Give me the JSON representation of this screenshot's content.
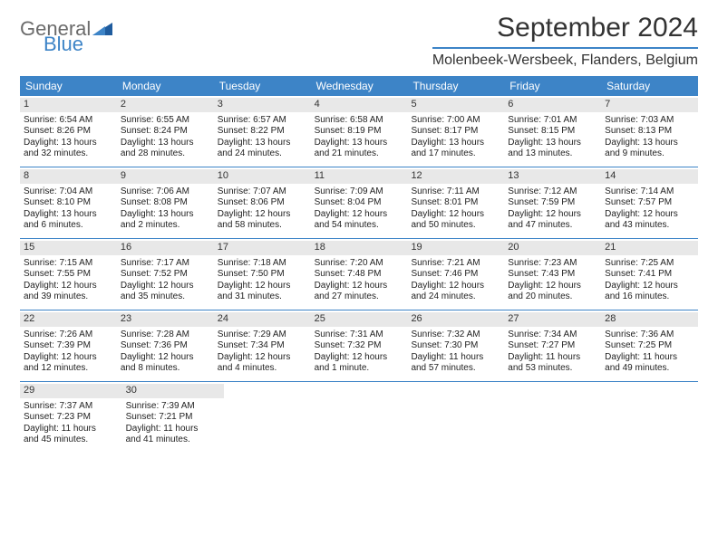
{
  "logo": {
    "general": "General",
    "blue": "Blue"
  },
  "title": "September 2024",
  "location": "Molenbeek-Wersbeek, Flanders, Belgium",
  "colors": {
    "accent": "#3d84c7",
    "day_bar": "#e8e8e8",
    "text": "#222222",
    "background": "#ffffff"
  },
  "weekdays": [
    "Sunday",
    "Monday",
    "Tuesday",
    "Wednesday",
    "Thursday",
    "Friday",
    "Saturday"
  ],
  "weeks": [
    [
      {
        "n": "1",
        "sr": "Sunrise: 6:54 AM",
        "ss": "Sunset: 8:26 PM",
        "d1": "Daylight: 13 hours",
        "d2": "and 32 minutes."
      },
      {
        "n": "2",
        "sr": "Sunrise: 6:55 AM",
        "ss": "Sunset: 8:24 PM",
        "d1": "Daylight: 13 hours",
        "d2": "and 28 minutes."
      },
      {
        "n": "3",
        "sr": "Sunrise: 6:57 AM",
        "ss": "Sunset: 8:22 PM",
        "d1": "Daylight: 13 hours",
        "d2": "and 24 minutes."
      },
      {
        "n": "4",
        "sr": "Sunrise: 6:58 AM",
        "ss": "Sunset: 8:19 PM",
        "d1": "Daylight: 13 hours",
        "d2": "and 21 minutes."
      },
      {
        "n": "5",
        "sr": "Sunrise: 7:00 AM",
        "ss": "Sunset: 8:17 PM",
        "d1": "Daylight: 13 hours",
        "d2": "and 17 minutes."
      },
      {
        "n": "6",
        "sr": "Sunrise: 7:01 AM",
        "ss": "Sunset: 8:15 PM",
        "d1": "Daylight: 13 hours",
        "d2": "and 13 minutes."
      },
      {
        "n": "7",
        "sr": "Sunrise: 7:03 AM",
        "ss": "Sunset: 8:13 PM",
        "d1": "Daylight: 13 hours",
        "d2": "and 9 minutes."
      }
    ],
    [
      {
        "n": "8",
        "sr": "Sunrise: 7:04 AM",
        "ss": "Sunset: 8:10 PM",
        "d1": "Daylight: 13 hours",
        "d2": "and 6 minutes."
      },
      {
        "n": "9",
        "sr": "Sunrise: 7:06 AM",
        "ss": "Sunset: 8:08 PM",
        "d1": "Daylight: 13 hours",
        "d2": "and 2 minutes."
      },
      {
        "n": "10",
        "sr": "Sunrise: 7:07 AM",
        "ss": "Sunset: 8:06 PM",
        "d1": "Daylight: 12 hours",
        "d2": "and 58 minutes."
      },
      {
        "n": "11",
        "sr": "Sunrise: 7:09 AM",
        "ss": "Sunset: 8:04 PM",
        "d1": "Daylight: 12 hours",
        "d2": "and 54 minutes."
      },
      {
        "n": "12",
        "sr": "Sunrise: 7:11 AM",
        "ss": "Sunset: 8:01 PM",
        "d1": "Daylight: 12 hours",
        "d2": "and 50 minutes."
      },
      {
        "n": "13",
        "sr": "Sunrise: 7:12 AM",
        "ss": "Sunset: 7:59 PM",
        "d1": "Daylight: 12 hours",
        "d2": "and 47 minutes."
      },
      {
        "n": "14",
        "sr": "Sunrise: 7:14 AM",
        "ss": "Sunset: 7:57 PM",
        "d1": "Daylight: 12 hours",
        "d2": "and 43 minutes."
      }
    ],
    [
      {
        "n": "15",
        "sr": "Sunrise: 7:15 AM",
        "ss": "Sunset: 7:55 PM",
        "d1": "Daylight: 12 hours",
        "d2": "and 39 minutes."
      },
      {
        "n": "16",
        "sr": "Sunrise: 7:17 AM",
        "ss": "Sunset: 7:52 PM",
        "d1": "Daylight: 12 hours",
        "d2": "and 35 minutes."
      },
      {
        "n": "17",
        "sr": "Sunrise: 7:18 AM",
        "ss": "Sunset: 7:50 PM",
        "d1": "Daylight: 12 hours",
        "d2": "and 31 minutes."
      },
      {
        "n": "18",
        "sr": "Sunrise: 7:20 AM",
        "ss": "Sunset: 7:48 PM",
        "d1": "Daylight: 12 hours",
        "d2": "and 27 minutes."
      },
      {
        "n": "19",
        "sr": "Sunrise: 7:21 AM",
        "ss": "Sunset: 7:46 PM",
        "d1": "Daylight: 12 hours",
        "d2": "and 24 minutes."
      },
      {
        "n": "20",
        "sr": "Sunrise: 7:23 AM",
        "ss": "Sunset: 7:43 PM",
        "d1": "Daylight: 12 hours",
        "d2": "and 20 minutes."
      },
      {
        "n": "21",
        "sr": "Sunrise: 7:25 AM",
        "ss": "Sunset: 7:41 PM",
        "d1": "Daylight: 12 hours",
        "d2": "and 16 minutes."
      }
    ],
    [
      {
        "n": "22",
        "sr": "Sunrise: 7:26 AM",
        "ss": "Sunset: 7:39 PM",
        "d1": "Daylight: 12 hours",
        "d2": "and 12 minutes."
      },
      {
        "n": "23",
        "sr": "Sunrise: 7:28 AM",
        "ss": "Sunset: 7:36 PM",
        "d1": "Daylight: 12 hours",
        "d2": "and 8 minutes."
      },
      {
        "n": "24",
        "sr": "Sunrise: 7:29 AM",
        "ss": "Sunset: 7:34 PM",
        "d1": "Daylight: 12 hours",
        "d2": "and 4 minutes."
      },
      {
        "n": "25",
        "sr": "Sunrise: 7:31 AM",
        "ss": "Sunset: 7:32 PM",
        "d1": "Daylight: 12 hours",
        "d2": "and 1 minute."
      },
      {
        "n": "26",
        "sr": "Sunrise: 7:32 AM",
        "ss": "Sunset: 7:30 PM",
        "d1": "Daylight: 11 hours",
        "d2": "and 57 minutes."
      },
      {
        "n": "27",
        "sr": "Sunrise: 7:34 AM",
        "ss": "Sunset: 7:27 PM",
        "d1": "Daylight: 11 hours",
        "d2": "and 53 minutes."
      },
      {
        "n": "28",
        "sr": "Sunrise: 7:36 AM",
        "ss": "Sunset: 7:25 PM",
        "d1": "Daylight: 11 hours",
        "d2": "and 49 minutes."
      }
    ],
    [
      {
        "n": "29",
        "sr": "Sunrise: 7:37 AM",
        "ss": "Sunset: 7:23 PM",
        "d1": "Daylight: 11 hours",
        "d2": "and 45 minutes."
      },
      {
        "n": "30",
        "sr": "Sunrise: 7:39 AM",
        "ss": "Sunset: 7:21 PM",
        "d1": "Daylight: 11 hours",
        "d2": "and 41 minutes."
      },
      null,
      null,
      null,
      null,
      null
    ]
  ]
}
